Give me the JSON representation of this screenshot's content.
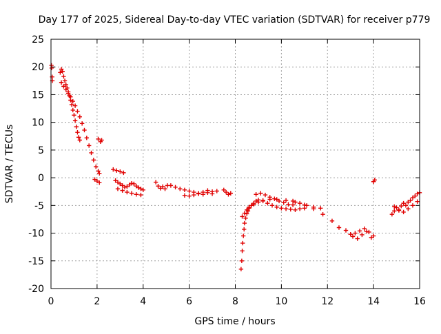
{
  "chart_data": {
    "type": "scatter",
    "title": "Day 177 of 2025, Sidereal Day-to-day VTEC variation (SDTVAR) for receiver p779",
    "xlabel": "GPS time / hours",
    "ylabel": "SDTVAR / TECUs",
    "xlim": [
      0,
      16
    ],
    "ylim": [
      -20,
      25
    ],
    "xticks": [
      "0",
      "2",
      "4",
      "6",
      "8",
      "10",
      "12",
      "14",
      "16"
    ],
    "yticks": [
      "-20",
      "-15",
      "-10",
      "-5",
      "0",
      "5",
      "10",
      "15",
      "20",
      "25"
    ],
    "grid": true,
    "marker": "plus",
    "color": "#e00000",
    "series": [
      {
        "name": "SDTVAR",
        "x": [
          0.02,
          0.03,
          0.05,
          0.06,
          0.4,
          0.45,
          0.5,
          0.55,
          0.6,
          0.65,
          0.7,
          0.75,
          0.8,
          0.85,
          0.9,
          0.95,
          1.0,
          1.05,
          1.1,
          1.15,
          1.2,
          1.25,
          0.45,
          0.55,
          0.65,
          0.75,
          0.85,
          0.95,
          1.05,
          1.15,
          1.25,
          1.35,
          1.45,
          1.55,
          1.65,
          1.75,
          1.85,
          1.95,
          2.05,
          2.1,
          1.9,
          2.0,
          2.1,
          2.2,
          2.05,
          2.15,
          2.7,
          2.85,
          3.0,
          3.15,
          2.8,
          2.9,
          3.0,
          3.1,
          3.2,
          3.3,
          3.4,
          3.5,
          3.6,
          3.7,
          3.8,
          3.9,
          4.0,
          2.9,
          3.1,
          3.3,
          3.5,
          3.7,
          3.9,
          4.55,
          4.65,
          4.75,
          4.85,
          4.95,
          5.05,
          5.2,
          5.4,
          5.6,
          5.8,
          6.0,
          6.2,
          6.4,
          6.6,
          6.8,
          7.0,
          7.2,
          5.8,
          6.0,
          6.2,
          6.4,
          6.6,
          6.8,
          7.0,
          7.5,
          7.6,
          7.7,
          7.8,
          8.25,
          8.28,
          8.3,
          8.32,
          8.35,
          8.38,
          8.4,
          8.45,
          8.5,
          8.55,
          8.6,
          8.7,
          8.8,
          8.9,
          9.0,
          9.2,
          9.4,
          9.6,
          9.8,
          10.0,
          10.2,
          10.4,
          10.6,
          10.8,
          11.0,
          8.3,
          8.4,
          8.5,
          8.6,
          8.8,
          9.0,
          9.2,
          9.5,
          9.8,
          10.2,
          10.6,
          11.0,
          11.4,
          11.8,
          12.2,
          12.5,
          8.9,
          9.1,
          9.3,
          9.5,
          9.7,
          9.9,
          10.1,
          10.3,
          10.5,
          10.5,
          10.8,
          11.1,
          11.4,
          11.7,
          12.8,
          13.0,
          13.2,
          13.4,
          13.6,
          13.8,
          14.0,
          13.1,
          13.3,
          13.5,
          13.7,
          13.9,
          14.0,
          14.05,
          14.8,
          14.9,
          15.0,
          15.1,
          15.2,
          15.3,
          15.4,
          15.5,
          15.6,
          15.7,
          15.8,
          15.9,
          16.0,
          14.9,
          15.1,
          15.3,
          15.5,
          15.7,
          15.9
        ],
        "y": [
          20.3,
          19.8,
          18.2,
          17.5,
          19.0,
          19.6,
          19.2,
          18.3,
          17.5,
          16.8,
          16.2,
          15.5,
          14.8,
          14.0,
          13.2,
          12.2,
          11.3,
          10.3,
          9.2,
          8.2,
          7.3,
          6.8,
          17.2,
          16.5,
          15.9,
          15.2,
          14.6,
          13.8,
          13.0,
          12.0,
          11.0,
          9.8,
          8.6,
          7.2,
          5.8,
          4.5,
          3.2,
          2.0,
          1.2,
          0.8,
          -0.3,
          -0.6,
          -0.9,
          6.8,
          7.0,
          6.5,
          1.5,
          1.3,
          1.1,
          0.9,
          -0.5,
          -0.8,
          -1.1,
          -1.4,
          -1.7,
          -1.6,
          -1.3,
          -1.0,
          -1.1,
          -1.5,
          -1.8,
          -2.0,
          -2.2,
          -2.0,
          -2.3,
          -2.6,
          -2.8,
          -3.0,
          -3.1,
          -0.8,
          -1.5,
          -1.9,
          -1.6,
          -2.0,
          -1.4,
          -1.4,
          -1.7,
          -2.0,
          -2.2,
          -2.4,
          -2.6,
          -2.8,
          -2.6,
          -2.3,
          -2.5,
          -2.4,
          -3.2,
          -3.3,
          -3.1,
          -2.9,
          -3.0,
          -2.7,
          -2.9,
          -2.2,
          -2.6,
          -3.0,
          -2.8,
          -16.5,
          -15.0,
          -13.2,
          -11.8,
          -10.5,
          -9.3,
          -8.2,
          -7.3,
          -6.5,
          -6.0,
          -5.5,
          -5.0,
          -4.6,
          -4.2,
          -4.0,
          -4.2,
          -4.6,
          -5.0,
          -5.3,
          -5.5,
          -5.6,
          -5.7,
          -5.8,
          -5.6,
          -5.5,
          -7.0,
          -6.4,
          -5.8,
          -5.3,
          -4.8,
          -4.4,
          -4.1,
          -3.9,
          -3.9,
          -4.1,
          -4.4,
          -4.9,
          -5.6,
          -6.6,
          -7.8,
          -9.0,
          -3.0,
          -2.8,
          -3.1,
          -3.5,
          -3.8,
          -4.2,
          -4.5,
          -4.8,
          -4.9,
          -4.2,
          -4.6,
          -5.0,
          -5.3,
          -5.5,
          -9.5,
          -10.2,
          -10.0,
          -9.6,
          -9.2,
          -9.8,
          -10.5,
          -10.6,
          -11.0,
          -10.3,
          -9.7,
          -10.8,
          -0.7,
          -0.4,
          -6.6,
          -6.0,
          -5.4,
          -5.9,
          -5.1,
          -4.6,
          -5.0,
          -4.4,
          -4.1,
          -3.6,
          -3.3,
          -2.9,
          -2.7,
          -5.2,
          -5.8,
          -6.2,
          -5.6,
          -5.0,
          -4.3
        ]
      }
    ]
  }
}
